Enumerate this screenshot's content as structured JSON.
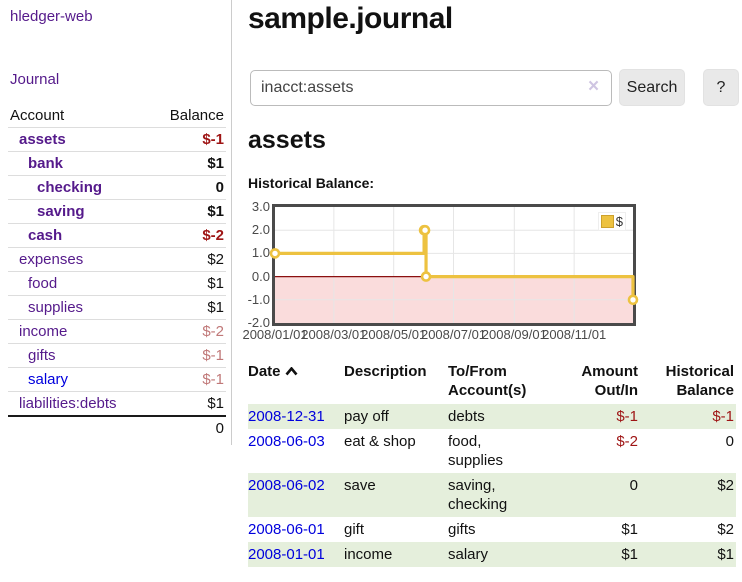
{
  "app": {
    "title": "hledger-web",
    "nav_journal": "Journal"
  },
  "sidebar": {
    "col_account": "Account",
    "col_balance": "Balance",
    "accounts": [
      {
        "label": "assets",
        "indent": 1,
        "bold": true,
        "balance": "$-1",
        "balance_style": "neg",
        "link": "purple"
      },
      {
        "label": "bank",
        "indent": 2,
        "bold": true,
        "balance": "$1",
        "balance_style": "pos",
        "link": "purple"
      },
      {
        "label": "checking",
        "indent": 3,
        "bold": true,
        "balance": "0",
        "balance_style": "pos",
        "link": "purple"
      },
      {
        "label": "saving",
        "indent": 3,
        "bold": true,
        "balance": "$1",
        "balance_style": "pos",
        "link": "purple"
      },
      {
        "label": "cash",
        "indent": 2,
        "bold": true,
        "balance": "$-2",
        "balance_style": "neg",
        "link": "purple"
      },
      {
        "label": "expenses",
        "indent": 1,
        "bold": false,
        "balance": "$2",
        "balance_style": "pos",
        "link": "purple"
      },
      {
        "label": "food",
        "indent": 2,
        "bold": false,
        "balance": "$1",
        "balance_style": "pos",
        "link": "purple"
      },
      {
        "label": "supplies",
        "indent": 2,
        "bold": false,
        "balance": "$1",
        "balance_style": "pos",
        "link": "purple"
      },
      {
        "label": "income",
        "indent": 1,
        "bold": false,
        "balance": "$-2",
        "balance_style": "negl",
        "link": "purple"
      },
      {
        "label": "gifts",
        "indent": 2,
        "bold": false,
        "balance": "$-1",
        "balance_style": "negl",
        "link": "purple"
      },
      {
        "label": "salary",
        "indent": 2,
        "bold": false,
        "balance": "$-1",
        "balance_style": "negl",
        "link": "blue"
      },
      {
        "label": "liabilities:debts",
        "indent": 1,
        "bold": false,
        "balance": "$1",
        "balance_style": "pos",
        "link": "purple"
      }
    ],
    "total": "0"
  },
  "main": {
    "title": "sample.journal",
    "search": {
      "value": "inacct:assets",
      "clear_icon": "×",
      "button": "Search",
      "help_button": "?"
    },
    "account_heading": "assets",
    "chart_label": "Historical Balance:"
  },
  "chart_data": {
    "type": "line",
    "step": true,
    "title": "Historical Balance",
    "legend": [
      {
        "label": "$",
        "color": "#EDC240"
      }
    ],
    "x": [
      "2008-01-01",
      "2008-06-01",
      "2008-06-02",
      "2008-06-03",
      "2008-12-31"
    ],
    "values": [
      1,
      2,
      2,
      0,
      -1
    ],
    "xlim": [
      "2008-01-01",
      "2008-12-31"
    ],
    "ylim": [
      -2,
      3
    ],
    "yticks": [
      "3.0",
      "2.0",
      "1.0",
      "0.0",
      "-1.0",
      "-2.0"
    ],
    "ytick_values": [
      3,
      2,
      1,
      0,
      -1,
      -2
    ],
    "xtick_labels": [
      "2008/01/01",
      "2008/03/01",
      "2008/05/01",
      "2008/07/01",
      "2008/09/01",
      "2008/11/01"
    ],
    "xtick_dates": [
      "2008-01-01",
      "2008-03-01",
      "2008-05-01",
      "2008-07-01",
      "2008-09-01",
      "2008-11-01"
    ],
    "grid": true,
    "legend_position": "top-right",
    "line_color": "#EDC240",
    "marker_fill": "#ffffff",
    "negative_region_color": "#fadcdc",
    "zero_line_color": "#8b1010",
    "gridline_color": "#e6e6e6"
  },
  "transactions": {
    "headers": {
      "date": "Date",
      "description": "Description",
      "accounts": "To/From Account(s)",
      "amount": "Amount Out/In",
      "balance": "Historical Balance"
    },
    "rows": [
      {
        "date": "2008-12-31",
        "description": "pay off",
        "accounts": "debts",
        "amount": "$-1",
        "amount_neg": true,
        "balance": "$-1",
        "balance_neg": true,
        "shaded": true
      },
      {
        "date": "2008-06-03",
        "description": "eat & shop",
        "accounts": "food, supplies",
        "amount": "$-2",
        "amount_neg": true,
        "balance": "0",
        "balance_neg": false,
        "shaded": false
      },
      {
        "date": "2008-06-02",
        "description": "save",
        "accounts": "saving, checking",
        "amount": "0",
        "amount_neg": false,
        "balance": "$2",
        "balance_neg": false,
        "shaded": true
      },
      {
        "date": "2008-06-01",
        "description": "gift",
        "accounts": "gifts",
        "amount": "$1",
        "amount_neg": false,
        "balance": "$2",
        "balance_neg": false,
        "shaded": false
      },
      {
        "date": "2008-01-01",
        "description": "income",
        "accounts": "salary",
        "amount": "$1",
        "amount_neg": false,
        "balance": "$1",
        "balance_neg": false,
        "shaded": true
      }
    ]
  },
  "colors": {
    "link_purple": "#551A8B",
    "link_blue": "#0000DD",
    "negative": "#9e1414",
    "negative_light": "#c07878",
    "row_green": "#e5efdc",
    "button_bg": "#e9e9e9",
    "chart_line": "#EDC240"
  }
}
